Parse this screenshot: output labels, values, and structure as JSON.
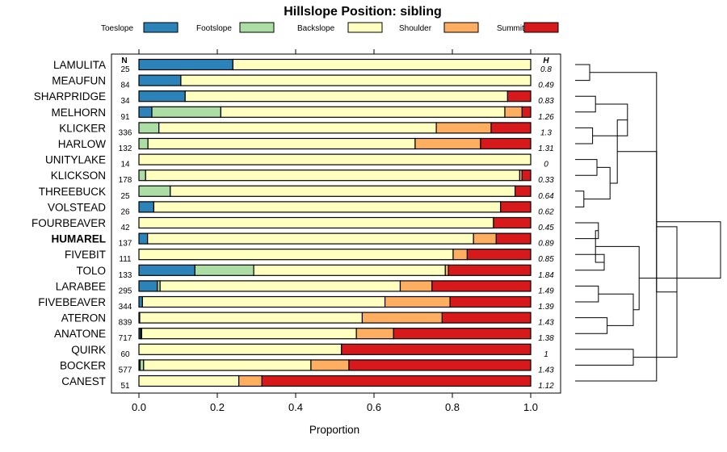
{
  "chart_data": {
    "type": "bar",
    "orientation": "horizontal",
    "stacked": true,
    "title": "Hillslope Position: sibling",
    "xlabel": "Proportion",
    "ylabel": "",
    "xlim": [
      0,
      1
    ],
    "x_ticks": [
      "0.0",
      "0.2",
      "0.4",
      "0.6",
      "0.8",
      "1.0"
    ],
    "x_tick_values": [
      0,
      0.2,
      0.4,
      0.6,
      0.8,
      1.0
    ],
    "n_header": "N",
    "h_header": "H",
    "legend_position": "top",
    "series": [
      {
        "name": "Toeslope",
        "color": "#2B83BA"
      },
      {
        "name": "Footslope",
        "color": "#ABDDA4"
      },
      {
        "name": "Backslope",
        "color": "#FFFFBF"
      },
      {
        "name": "Shoulder",
        "color": "#FDAE61"
      },
      {
        "name": "Summit",
        "color": "#D7191C"
      }
    ],
    "categories": [
      {
        "name": "LAMULITA",
        "n": "25",
        "h": "0.8",
        "bold": false,
        "values": [
          0.24,
          0,
          0.76,
          0,
          0
        ]
      },
      {
        "name": "MEAUFUN",
        "n": "84",
        "h": "0.49",
        "bold": false,
        "values": [
          0.107,
          0,
          0.893,
          0,
          0
        ]
      },
      {
        "name": "SHARPRIDGE",
        "n": "34",
        "h": "0.83",
        "bold": false,
        "values": [
          0.118,
          0,
          0.823,
          0,
          0.059
        ]
      },
      {
        "name": "MELHORN",
        "n": "91",
        "h": "1.26",
        "bold": false,
        "values": [
          0.033,
          0.176,
          0.725,
          0.044,
          0.022
        ]
      },
      {
        "name": "KLICKER",
        "n": "336",
        "h": "1.3",
        "bold": false,
        "values": [
          0,
          0.051,
          0.708,
          0.14,
          0.101
        ]
      },
      {
        "name": "HARLOW",
        "n": "132",
        "h": "1.31",
        "bold": false,
        "values": [
          0,
          0.023,
          0.682,
          0.167,
          0.128
        ]
      },
      {
        "name": "UNITYLAKE",
        "n": "14",
        "h": "0",
        "bold": false,
        "values": [
          0,
          0,
          1.0,
          0,
          0
        ]
      },
      {
        "name": "KLICKSON",
        "n": "178",
        "h": "0.33",
        "bold": false,
        "values": [
          0,
          0.017,
          0.955,
          0.006,
          0.022
        ]
      },
      {
        "name": "THREEBUCK",
        "n": "25",
        "h": "0.64",
        "bold": false,
        "values": [
          0,
          0.08,
          0.88,
          0,
          0.04
        ]
      },
      {
        "name": "VOLSTEAD",
        "n": "26",
        "h": "0.62",
        "bold": false,
        "values": [
          0.038,
          0,
          0.885,
          0,
          0.077
        ]
      },
      {
        "name": "FOURBEAVER",
        "n": "42",
        "h": "0.45",
        "bold": false,
        "values": [
          0,
          0,
          0.905,
          0,
          0.095
        ]
      },
      {
        "name": "HUMAREL",
        "n": "137",
        "h": "0.89",
        "bold": true,
        "values": [
          0.022,
          0,
          0.832,
          0.058,
          0.088
        ]
      },
      {
        "name": "FIVEBIT",
        "n": "111",
        "h": "0.85",
        "bold": false,
        "values": [
          0,
          0,
          0.802,
          0.036,
          0.162
        ]
      },
      {
        "name": "TOLO",
        "n": "133",
        "h": "1.84",
        "bold": false,
        "values": [
          0.143,
          0.15,
          0.489,
          0.008,
          0.21
        ]
      },
      {
        "name": "LARABEE",
        "n": "295",
        "h": "1.49",
        "bold": false,
        "values": [
          0.047,
          0.007,
          0.613,
          0.081,
          0.252
        ]
      },
      {
        "name": "FIVEBEAVER",
        "n": "344",
        "h": "1.39",
        "bold": false,
        "values": [
          0.009,
          0,
          0.619,
          0.166,
          0.206
        ]
      },
      {
        "name": "ATERON",
        "n": "839",
        "h": "1.43",
        "bold": false,
        "values": [
          0.002,
          0,
          0.568,
          0.204,
          0.226
        ]
      },
      {
        "name": "ANATONE",
        "n": "717",
        "h": "1.38",
        "bold": false,
        "values": [
          0.004,
          0.003,
          0.548,
          0.095,
          0.35
        ]
      },
      {
        "name": "QUIRK",
        "n": "60",
        "h": "1",
        "bold": false,
        "values": [
          0,
          0,
          0.517,
          0,
          0.483
        ]
      },
      {
        "name": "BOCKER",
        "n": "577",
        "h": "1.43",
        "bold": false,
        "values": [
          0.003,
          0.009,
          0.427,
          0.097,
          0.464
        ]
      },
      {
        "name": "CANEST",
        "n": "51",
        "h": "1.12",
        "bold": false,
        "values": [
          0,
          0,
          0.255,
          0.059,
          0.686
        ]
      }
    ],
    "dendrogram": {
      "description": "hierarchical clustering of siblings shown at right",
      "merges": [
        [
          0,
          1,
          0.1
        ],
        [
          2,
          3,
          0.14
        ],
        [
          4,
          5,
          0.12
        ],
        [
          6,
          7,
          0.15
        ],
        [
          8,
          9,
          0.06
        ],
        [
          10,
          11,
          0.16
        ],
        [
          12,
          13,
          0.2
        ],
        [
          14,
          15,
          0.16
        ],
        [
          16,
          17,
          0.22
        ],
        [
          18,
          19,
          0.4
        ],
        [
          20,
          21,
          0.56
        ],
        [
          22,
          23,
          0.36
        ],
        [
          24,
          25,
          0.24
        ],
        [
          26,
          27,
          0.14
        ],
        [
          28,
          29,
          0.4
        ],
        [
          30,
          31,
          0.7
        ],
        [
          32,
          33,
          0.29
        ],
        [
          34,
          35,
          0.44
        ],
        [
          36,
          37,
          0.56
        ],
        [
          38,
          39,
          1.0
        ]
      ],
      "leaf_order": [
        0,
        1,
        2,
        3,
        4,
        5,
        6,
        7,
        8,
        9,
        10,
        11,
        12,
        13,
        14,
        15,
        16,
        17,
        18,
        19,
        20
      ]
    }
  }
}
